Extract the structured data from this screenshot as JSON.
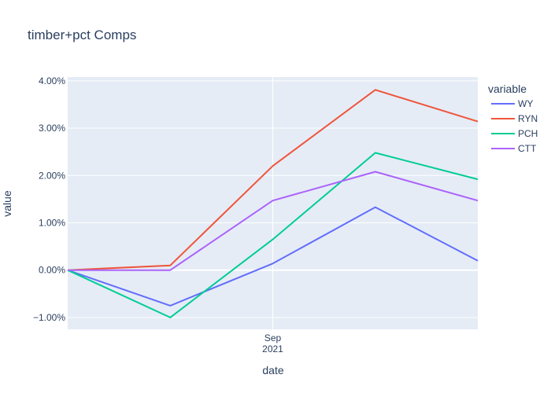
{
  "chart_data": {
    "type": "line",
    "title": "timber+pct Comps",
    "xlabel": "date",
    "ylabel": "value",
    "x": [
      "2021-08-02",
      "2021-08-16",
      "2021-08-30",
      "2021-09-13",
      "2021-09-27"
    ],
    "x_ticks": [
      {
        "value": "2021-08-30",
        "label_line1": "Sep",
        "label_line2": "2021"
      }
    ],
    "y_tick_values": [
      -0.01,
      0.0,
      0.01,
      0.02,
      0.03,
      0.04
    ],
    "y_tick_labels": [
      "−1.00%",
      "0.00%",
      "1.00%",
      "2.00%",
      "3.00%",
      "4.00%"
    ],
    "ylim": [
      -0.0125,
      0.0408
    ],
    "y_format": "percent",
    "grid": true,
    "legend_title": "variable",
    "legend_position": "right",
    "series": [
      {
        "name": "WY",
        "color": "#636efa",
        "values": [
          0.0,
          -0.0075,
          0.0014,
          0.0133,
          0.002
        ]
      },
      {
        "name": "RYN",
        "color": "#EF553B",
        "values": [
          0.0,
          0.001,
          0.022,
          0.0381,
          0.0314
        ]
      },
      {
        "name": "PCH",
        "color": "#00cc96",
        "values": [
          0.0,
          -0.01,
          0.0065,
          0.0248,
          0.0192
        ]
      },
      {
        "name": "CTT",
        "color": "#ab63fa",
        "values": [
          0.0,
          0.0,
          0.0147,
          0.0208,
          0.0147
        ]
      }
    ]
  }
}
